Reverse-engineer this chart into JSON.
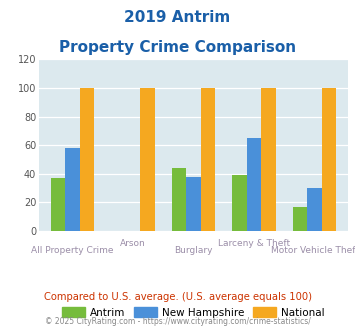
{
  "title_line1": "2019 Antrim",
  "title_line2": "Property Crime Comparison",
  "categories": [
    "All Property Crime",
    "Arson",
    "Burglary",
    "Larceny & Theft",
    "Motor Vehicle Theft"
  ],
  "antrim": [
    37,
    0,
    44,
    39,
    17
  ],
  "new_hampshire": [
    58,
    0,
    38,
    65,
    30
  ],
  "national": [
    100,
    100,
    100,
    100,
    100
  ],
  "antrim_color": "#76bc3c",
  "new_hampshire_color": "#4a90d9",
  "national_color": "#f5a820",
  "bg_color": "#dce9ee",
  "title_color": "#1a5fa8",
  "xlabel_color": "#9b8ea8",
  "legend_labels": [
    "Antrim",
    "New Hampshire",
    "National"
  ],
  "footnote1": "Compared to U.S. average. (U.S. average equals 100)",
  "footnote2": "© 2025 CityRating.com - https://www.cityrating.com/crime-statistics/",
  "ylim": [
    0,
    120
  ],
  "yticks": [
    0,
    20,
    40,
    60,
    80,
    100,
    120
  ],
  "xtick_top": [
    "",
    "Arson",
    "",
    "Larceny & Theft",
    ""
  ],
  "xtick_bot": [
    "All Property Crime",
    "",
    "Burglary",
    "",
    "Motor Vehicle Theft"
  ]
}
